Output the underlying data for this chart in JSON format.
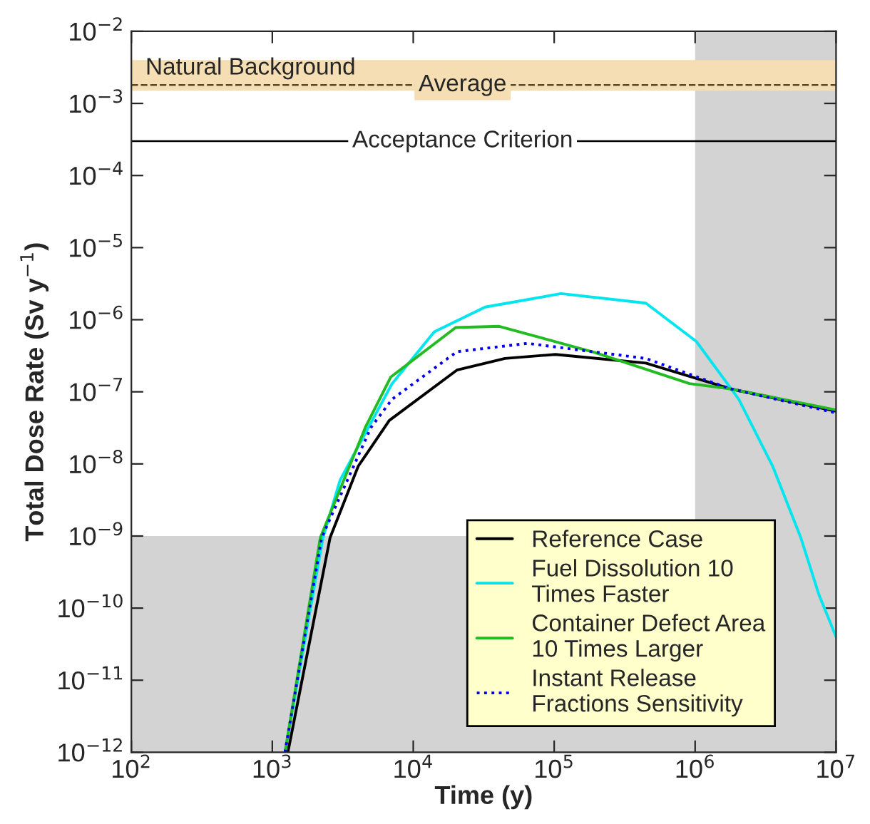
{
  "chart_data": {
    "type": "line",
    "xlabel": "Time (y)",
    "ylabel": "Total Dose Rate (Sv y$^{−1}$)",
    "log": "xy",
    "xlim": [
      100,
      10000000
    ],
    "ylim": [
      1e-12,
      0.01
    ],
    "xticks": [
      {
        "value": 100,
        "label": "10$^{2}$"
      },
      {
        "value": 1000,
        "label": "10$^{3}$"
      },
      {
        "value": 10000,
        "label": "10$^{4}$"
      },
      {
        "value": 100000,
        "label": "10$^{5}$"
      },
      {
        "value": 1000000,
        "label": "10$^{6}$"
      },
      {
        "value": 10000000,
        "label": "10$^{7}$"
      }
    ],
    "yticks": [
      {
        "value": 1e-12,
        "label": "10$^{−12}$"
      },
      {
        "value": 1e-11,
        "label": "10$^{−11}$"
      },
      {
        "value": 1e-10,
        "label": "10$^{−10}$"
      },
      {
        "value": 1e-09,
        "label": "10$^{−9}$"
      },
      {
        "value": 1e-08,
        "label": "10$^{−8}$"
      },
      {
        "value": 1e-07,
        "label": "10$^{−7}$"
      },
      {
        "value": 1e-06,
        "label": "10$^{−6}$"
      },
      {
        "value": 1e-05,
        "label": "10$^{−5}$"
      },
      {
        "value": 0.0001,
        "label": "10$^{−4}$"
      },
      {
        "value": 0.001,
        "label": "10$^{−3}$"
      },
      {
        "value": 0.01,
        "label": "10$^{−2}$"
      }
    ],
    "grid": false,
    "legend": "bottom right",
    "series": [
      {
        "name": "Reference Case",
        "color": "#000000",
        "line_style": "solid",
        "x": [
          1290,
          2570,
          4070,
          6760,
          20400,
          44700,
          102000,
          447000,
          1780000,
          10000000
        ],
        "values": [
          1e-12,
          9.5e-10,
          9.3e-09,
          4e-08,
          2e-07,
          2.9e-07,
          3.3e-07,
          2.5e-07,
          1.1e-07,
          5.4e-08
        ]
      },
      {
        "name": "Fuel Dissolution 10\nTimes Faster",
        "color": "#00e5ee",
        "line_style": "solid",
        "x": [
          1230,
          2290,
          3020,
          7080,
          14100,
          32400,
          112000,
          447000,
          1020000,
          2040000,
          3550000,
          5620000,
          7590000,
          10000000
        ],
        "values": [
          1e-12,
          9.5e-10,
          5.9e-09,
          1.3e-07,
          6.8e-07,
          1.5e-06,
          2.3e-06,
          1.7e-06,
          5e-07,
          7.9e-08,
          9.3e-09,
          9.5e-10,
          1.5e-10,
          4e-11
        ]
      },
      {
        "name": "Container Defect Area\n10 Times Larger",
        "color": "#22bb22",
        "line_style": "solid",
        "x": [
          1230,
          2190,
          4570,
          6920,
          20000,
          40700,
          195000,
          912000,
          1780000,
          10000000
        ],
        "values": [
          1e-12,
          9.5e-10,
          3.2e-08,
          1.6e-07,
          7.8e-07,
          8.1e-07,
          3.5e-07,
          1.3e-07,
          1.1e-07,
          5.6e-08
        ]
      },
      {
        "name": "Instant Release\nFractions Sensitivity",
        "color": "#0000ee",
        "line_style": "dotted",
        "x": [
          1230,
          2240,
          5010,
          7080,
          20400,
          64600,
          447000,
          1780000,
          10000000
        ],
        "values": [
          1e-12,
          9.5e-10,
          3.2e-08,
          7.9e-08,
          3.6e-07,
          4.7e-07,
          2.9e-07,
          1.1e-07,
          5.1e-08
        ]
      }
    ],
    "bands": [
      {
        "axis": "y",
        "from": 0.0015,
        "to": 0.004,
        "label": "Natural Background",
        "color": "#f5deb3"
      },
      {
        "axis": "x",
        "from": 1000000,
        "to": 10000000,
        "color": "#d3d3d3"
      },
      {
        "axis": "y",
        "from": 1e-12,
        "to": 1e-09,
        "color": "#d3d3d3"
      }
    ],
    "ref_lines": [
      {
        "axis": "y",
        "value": 0.0018,
        "label": "Average",
        "line_style": "dashed",
        "color": "#5a4a2a"
      },
      {
        "axis": "y",
        "value": 0.0003,
        "label": "Acceptance Criterion",
        "line_style": "solid",
        "color": "#000000"
      }
    ]
  }
}
